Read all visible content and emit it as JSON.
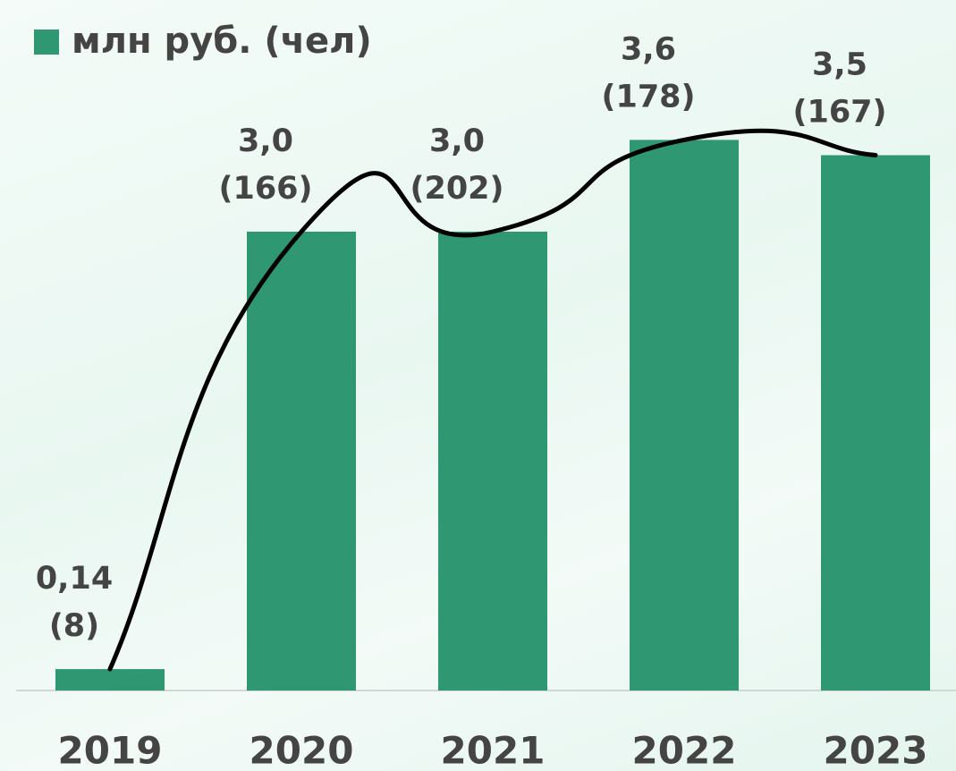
{
  "chart_data": {
    "type": "bar",
    "categories": [
      "2019",
      "2020",
      "2021",
      "2022",
      "2023"
    ],
    "series": [
      {
        "name": "млн руб. (чел)",
        "color": "#2f9872",
        "values": [
          0.14,
          3.0,
          3.0,
          3.6,
          3.5
        ],
        "value_labels": [
          "0,14",
          "3,0",
          "3,0",
          "3,6",
          "3,5"
        ],
        "count_labels": [
          "(8)",
          "(166)",
          "(202)",
          "(178)",
          "(167)"
        ]
      }
    ],
    "trend_line": true
  }
}
